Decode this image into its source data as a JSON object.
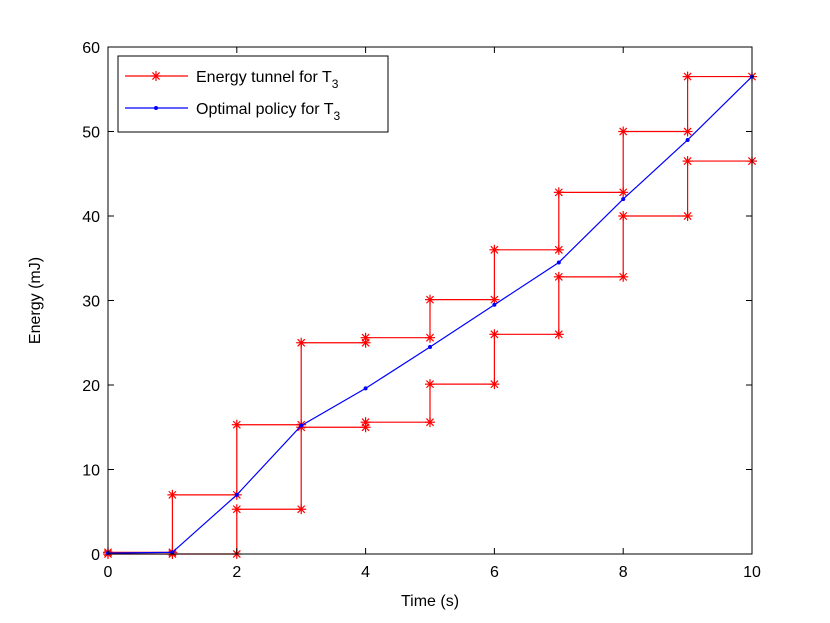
{
  "chart_data": {
    "type": "line",
    "title": "",
    "xlabel": "Time (s)",
    "ylabel": "Energy (mJ)",
    "xlim": [
      0,
      10
    ],
    "ylim": [
      0,
      60
    ],
    "xticks": [
      0,
      2,
      4,
      6,
      8,
      10
    ],
    "yticks": [
      0,
      10,
      20,
      30,
      40,
      50,
      60
    ],
    "grid": false,
    "legend_position": "top-left",
    "series": [
      {
        "name": "Energy tunnel for T",
        "subscript": "3",
        "color": "#ff0000",
        "marker": "asterisk",
        "segments": [
          {
            "x": [
              0,
              1,
              1,
              2,
              2,
              3,
              3,
              4,
              4,
              5,
              5,
              6,
              6,
              7,
              7,
              8,
              8,
              9,
              9,
              10
            ],
            "y": [
              0.2,
              0.2,
              7,
              7,
              15.3,
              15.3,
              25,
              25,
              25.6,
              25.6,
              30.1,
              30.1,
              36,
              36,
              42.8,
              42.8,
              50,
              50,
              56.5,
              56.5
            ]
          },
          {
            "x": [
              0,
              1,
              2,
              2,
              3,
              3,
              4,
              4,
              5,
              5,
              6,
              6,
              7,
              7,
              8,
              8,
              9,
              9,
              10
            ],
            "y": [
              0,
              0,
              0,
              5.3,
              5.3,
              15,
              15,
              15.6,
              15.6,
              20.1,
              20.1,
              26,
              26,
              32.8,
              32.8,
              40,
              40,
              46.5,
              46.5
            ]
          }
        ]
      },
      {
        "name": "Optimal policy for T",
        "subscript": "3",
        "color": "#0000ff",
        "marker": "dot",
        "x": [
          0,
          1,
          2,
          3,
          4,
          5,
          6,
          7,
          8,
          9,
          10
        ],
        "y": [
          0.1,
          0.2,
          7,
          15.2,
          19.6,
          24.5,
          29.5,
          34.5,
          42,
          49,
          56.5
        ]
      }
    ]
  }
}
